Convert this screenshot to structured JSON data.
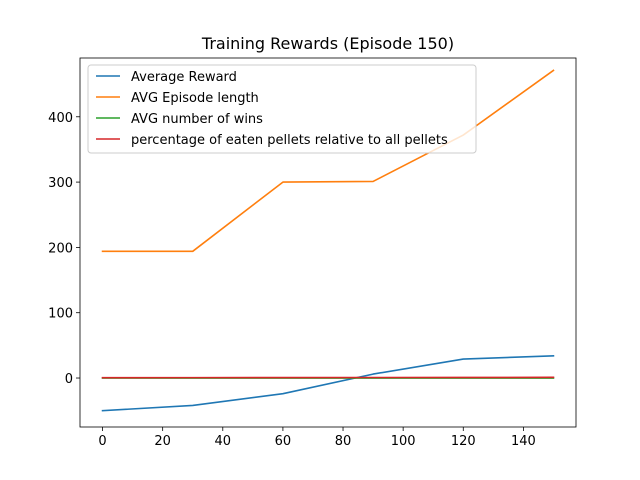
{
  "chart_data": {
    "type": "line",
    "title": "Training Rewards (Episode 150)",
    "xlabel": "",
    "ylabel": "",
    "x": [
      0,
      30,
      60,
      90,
      120,
      150
    ],
    "xlim": [
      -7.5,
      157.5
    ],
    "ylim": [
      -75,
      490
    ],
    "xticks": [
      0,
      20,
      40,
      60,
      80,
      100,
      120,
      140
    ],
    "yticks": [
      0,
      100,
      200,
      300,
      400
    ],
    "grid": false,
    "legend_position": "top-left",
    "series": [
      {
        "name": "Average Reward",
        "color": "#1f77b4",
        "values": [
          -50,
          -42,
          -24,
          6,
          29,
          34
        ]
      },
      {
        "name": "AVG Episode length",
        "color": "#ff7f0e",
        "values": [
          194,
          194,
          300,
          301,
          372,
          471
        ]
      },
      {
        "name": "AVG number of wins",
        "color": "#2ca02c",
        "values": [
          0,
          0,
          0,
          0,
          0,
          0
        ]
      },
      {
        "name": "percentage of eaten pellets relative to all pellets",
        "color": "#d62728",
        "values": [
          0.5,
          0.6,
          0.7,
          0.8,
          0.9,
          1.0
        ]
      }
    ]
  }
}
